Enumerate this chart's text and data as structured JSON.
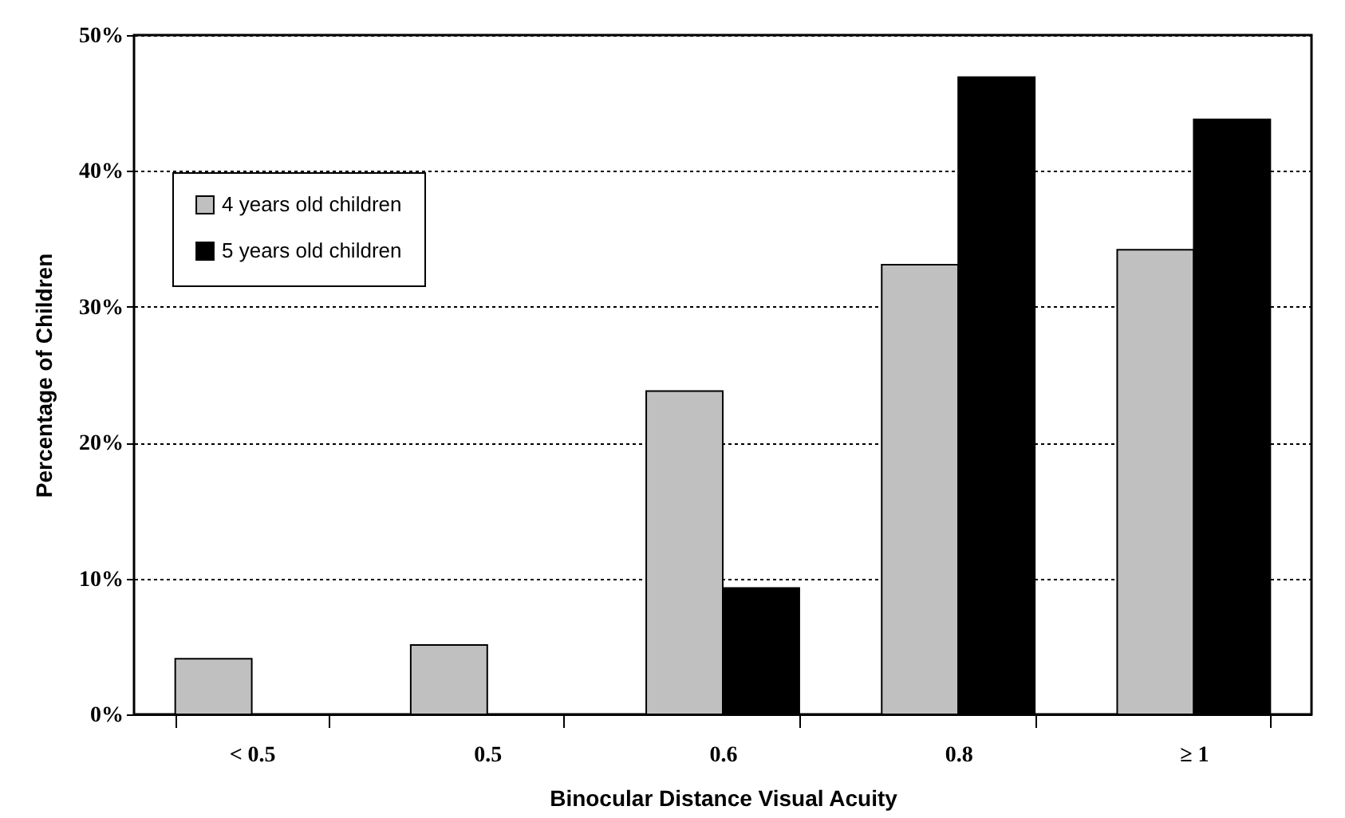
{
  "chart_data": {
    "type": "bar",
    "xlabel": "Binocular Distance Visual Acuity",
    "ylabel": "Percentage of Children",
    "categories": [
      "< 0.5",
      "0.5",
      "0.6",
      "0.8",
      "≥ 1"
    ],
    "series": [
      {
        "name": "4 years old children",
        "color": "#c0c0c0",
        "values": [
          4.1,
          5.1,
          23.8,
          33.1,
          34.2
        ]
      },
      {
        "name": "5 years old children",
        "color": "#000000",
        "values": [
          0,
          0,
          9.3,
          46.9,
          43.8
        ]
      }
    ],
    "ylim": [
      0,
      50
    ],
    "yticks": [
      {
        "value": 0,
        "label": "0%"
      },
      {
        "value": 10,
        "label": "10%"
      },
      {
        "value": 20,
        "label": "20%"
      },
      {
        "value": 30,
        "label": "30%"
      },
      {
        "value": 40,
        "label": "40%"
      },
      {
        "value": 50,
        "label": "50%"
      }
    ],
    "grid": "y",
    "legend": "top left"
  }
}
